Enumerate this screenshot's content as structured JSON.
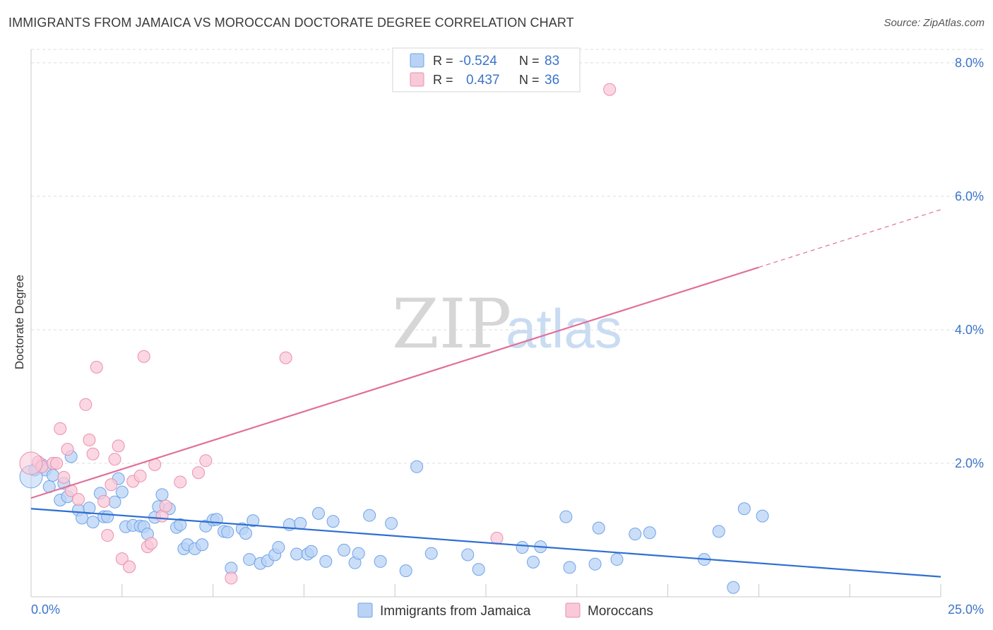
{
  "title": "IMMIGRANTS FROM JAMAICA VS MOROCCAN DOCTORATE DEGREE CORRELATION CHART",
  "source": "Source: ZipAtlas.com",
  "watermark": {
    "zip": "ZIP",
    "atlas": "atlas"
  },
  "chart_data": {
    "type": "scatter",
    "title": "IMMIGRANTS FROM JAMAICA VS MOROCCAN DOCTORATE DEGREE CORRELATION CHART",
    "xlabel": "",
    "ylabel": "Doctorate Degree",
    "xlim": [
      0,
      25
    ],
    "ylim": [
      0,
      8.2
    ],
    "x_tick_labels": [
      "0.0%",
      "25.0%"
    ],
    "y_ticks": [
      2,
      4,
      6,
      8
    ],
    "y_tick_labels": [
      "2.0%",
      "4.0%",
      "6.0%",
      "8.0%"
    ],
    "grid": true,
    "legend": {
      "position": "top-center",
      "entries": [
        {
          "r_label": "R =",
          "r_value": "-0.524",
          "n_label": "N =",
          "n_value": "83"
        },
        {
          "r_label": "R =",
          "r_value": "0.437",
          "n_label": "N =",
          "n_value": "36"
        }
      ]
    },
    "series": [
      {
        "name": "Immigrants from Jamaica",
        "color": "#6fa3e8",
        "fill": "#b9d3f5",
        "trend": {
          "x0": 0,
          "y0": 1.32,
          "x1": 25,
          "y1": 0.3
        },
        "points": [
          [
            0.1,
            1.9
          ],
          [
            0.3,
            1.98
          ],
          [
            0.4,
            1.9
          ],
          [
            0.5,
            1.65
          ],
          [
            0.6,
            1.82
          ],
          [
            0.8,
            1.45
          ],
          [
            0.9,
            1.7
          ],
          [
            1.0,
            1.5
          ],
          [
            1.1,
            2.1
          ],
          [
            1.3,
            1.3
          ],
          [
            1.4,
            1.18
          ],
          [
            1.6,
            1.33
          ],
          [
            1.7,
            1.12
          ],
          [
            1.9,
            1.55
          ],
          [
            2.0,
            1.2
          ],
          [
            2.1,
            1.2
          ],
          [
            2.3,
            1.42
          ],
          [
            2.4,
            1.77
          ],
          [
            2.5,
            1.57
          ],
          [
            2.6,
            1.05
          ],
          [
            2.8,
            1.07
          ],
          [
            3.0,
            1.06
          ],
          [
            3.1,
            1.05
          ],
          [
            3.2,
            0.94
          ],
          [
            3.4,
            1.19
          ],
          [
            3.5,
            1.35
          ],
          [
            3.6,
            1.53
          ],
          [
            3.8,
            1.32
          ],
          [
            4.0,
            1.04
          ],
          [
            4.1,
            1.08
          ],
          [
            4.2,
            0.72
          ],
          [
            4.3,
            0.78
          ],
          [
            4.5,
            0.72
          ],
          [
            4.7,
            0.78
          ],
          [
            4.8,
            1.06
          ],
          [
            5.0,
            1.15
          ],
          [
            5.1,
            1.16
          ],
          [
            5.3,
            0.98
          ],
          [
            5.4,
            0.97
          ],
          [
            5.5,
            0.43
          ],
          [
            5.8,
            1.02
          ],
          [
            5.9,
            0.95
          ],
          [
            6.0,
            0.56
          ],
          [
            6.1,
            1.14
          ],
          [
            6.3,
            0.5
          ],
          [
            6.5,
            0.54
          ],
          [
            6.7,
            0.63
          ],
          [
            6.8,
            0.74
          ],
          [
            7.1,
            1.08
          ],
          [
            7.3,
            0.64
          ],
          [
            7.4,
            1.1
          ],
          [
            7.6,
            0.64
          ],
          [
            7.7,
            0.68
          ],
          [
            7.9,
            1.25
          ],
          [
            8.1,
            0.53
          ],
          [
            8.3,
            1.13
          ],
          [
            8.6,
            0.7
          ],
          [
            8.9,
            0.51
          ],
          [
            9.0,
            0.65
          ],
          [
            9.3,
            1.22
          ],
          [
            9.6,
            0.53
          ],
          [
            9.9,
            1.1
          ],
          [
            10.3,
            0.39
          ],
          [
            10.6,
            1.95
          ],
          [
            11.0,
            0.65
          ],
          [
            12.0,
            0.63
          ],
          [
            12.3,
            0.41
          ],
          [
            13.5,
            0.74
          ],
          [
            13.8,
            0.52
          ],
          [
            14.0,
            0.75
          ],
          [
            14.7,
            1.2
          ],
          [
            14.8,
            0.44
          ],
          [
            15.5,
            0.49
          ],
          [
            15.6,
            1.03
          ],
          [
            16.1,
            0.56
          ],
          [
            16.6,
            0.94
          ],
          [
            17.0,
            0.96
          ],
          [
            18.5,
            0.56
          ],
          [
            18.9,
            0.98
          ],
          [
            19.3,
            0.14
          ],
          [
            19.6,
            1.32
          ],
          [
            20.1,
            1.21
          ],
          [
            0.0,
            1.8
          ]
        ]
      },
      {
        "name": "Moroccans",
        "color": "#ea8fae",
        "fill": "#f9c9d8",
        "trend": {
          "x0": 0,
          "y0": 1.48,
          "x1": 25,
          "y1": 5.8
        },
        "trend_solid_until": 20.0,
        "points": [
          [
            0.2,
            2.02
          ],
          [
            0.3,
            1.95
          ],
          [
            0.6,
            2.0
          ],
          [
            0.7,
            2.0
          ],
          [
            0.8,
            2.52
          ],
          [
            0.9,
            1.79
          ],
          [
            1.0,
            2.21
          ],
          [
            1.1,
            1.59
          ],
          [
            1.3,
            1.46
          ],
          [
            1.5,
            2.88
          ],
          [
            1.6,
            2.35
          ],
          [
            1.7,
            2.14
          ],
          [
            1.8,
            3.44
          ],
          [
            2.0,
            1.43
          ],
          [
            2.1,
            0.92
          ],
          [
            2.2,
            1.68
          ],
          [
            2.3,
            2.06
          ],
          [
            2.4,
            2.26
          ],
          [
            2.5,
            0.57
          ],
          [
            2.7,
            0.45
          ],
          [
            2.8,
            1.73
          ],
          [
            3.0,
            1.81
          ],
          [
            3.2,
            0.75
          ],
          [
            3.3,
            0.8
          ],
          [
            3.1,
            3.6
          ],
          [
            3.4,
            1.98
          ],
          [
            3.6,
            1.21
          ],
          [
            3.7,
            1.36
          ],
          [
            4.1,
            1.72
          ],
          [
            4.6,
            1.86
          ],
          [
            4.8,
            2.04
          ],
          [
            5.5,
            0.28
          ],
          [
            7.0,
            3.58
          ],
          [
            12.8,
            0.88
          ],
          [
            15.9,
            7.6
          ],
          [
            0.0,
            2.0
          ]
        ]
      }
    ]
  },
  "bottom_legend": [
    "Immigrants from Jamaica",
    "Moroccans"
  ]
}
